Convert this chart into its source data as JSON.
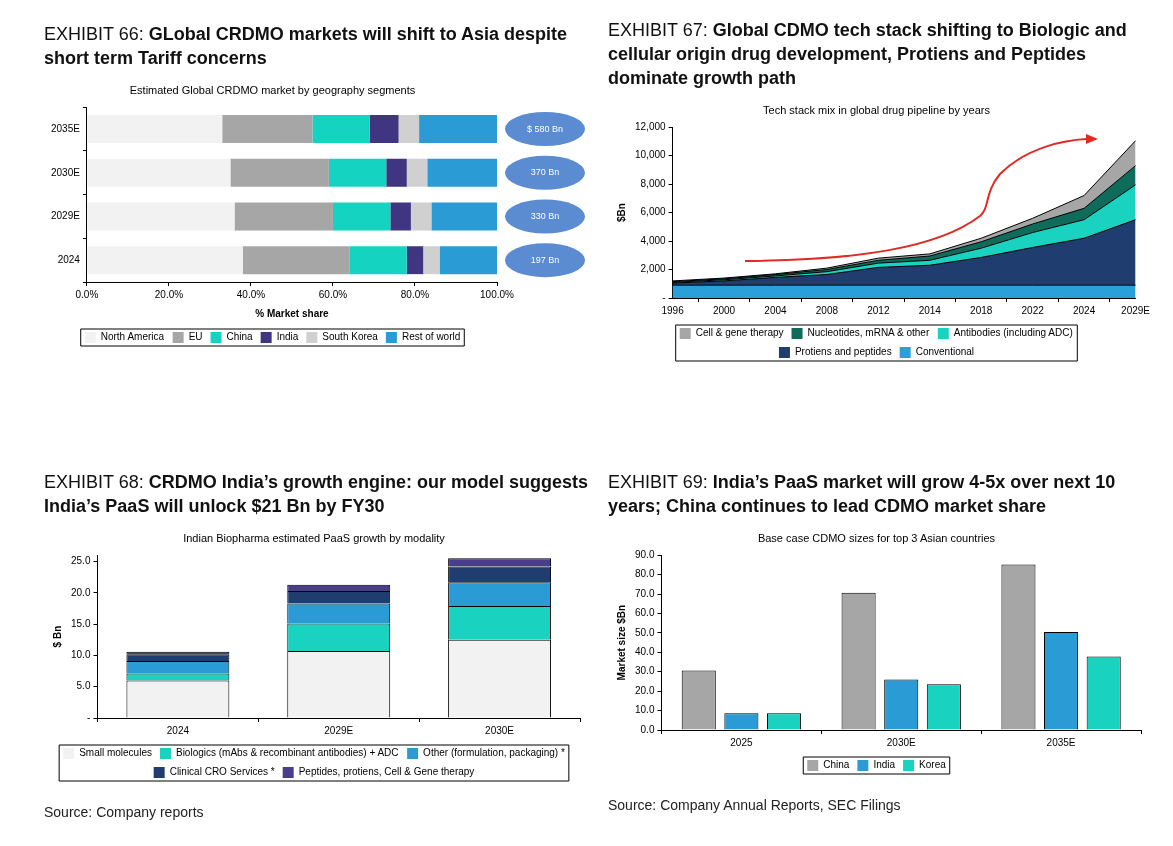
{
  "chart_data": [
    {
      "type": "bar",
      "orientation": "horizontal",
      "stacked": true,
      "title": "EXHIBIT 66: GLobal CRDMO markets will shift to Asia despite short term Tariff concerns",
      "subtitle": "Estimated Global CRDMO market by geography segments",
      "xlabel": "% Market share",
      "categories": [
        "2035E",
        "2030E",
        "2029E",
        "2024"
      ],
      "xlim": [
        0,
        100
      ],
      "xticks": [
        {
          "value": 0,
          "label": "0.0%"
        },
        {
          "value": 20,
          "label": "20.0%"
        },
        {
          "value": 40,
          "label": "40.0%"
        },
        {
          "value": 60,
          "label": "60.0%"
        },
        {
          "value": 80,
          "label": "80.0%"
        },
        {
          "value": 100,
          "label": "100.0%"
        }
      ],
      "legend": "bottom",
      "series": [
        {
          "name": "North America",
          "color": "#f2f2f2",
          "values": [
            33,
            35,
            36,
            38
          ]
        },
        {
          "name": "EU",
          "color": "#a6a6a6",
          "values": [
            22,
            24,
            24,
            26
          ]
        },
        {
          "name": "China",
          "color": "#14d3c0",
          "values": [
            14,
            14,
            14,
            14
          ]
        },
        {
          "name": "India",
          "color": "#3f3580",
          "values": [
            7,
            5,
            5,
            4
          ]
        },
        {
          "name": "South Korea",
          "color": "#d0d0d0",
          "values": [
            5,
            5,
            5,
            4
          ]
        },
        {
          "name": "Rest of world",
          "color": "#2a9bd4",
          "values": [
            19,
            17,
            16,
            14
          ]
        }
      ],
      "annotations": [
        "$ 580 Bn",
        "370 Bn",
        "330 Bn",
        "197 Bn"
      ]
    },
    {
      "type": "area",
      "stacked": true,
      "title": "EXHIBIT 67: Global CDMO tech stack shifting to Biologic and cellular origin drug development, Protiens and Peptides dominate growth path",
      "subtitle": "Tech stack mix in global drug pipeline by years",
      "ylabel": "$Bn",
      "categories": [
        "1996",
        "2000",
        "2004",
        "2008",
        "2012",
        "2014",
        "2018",
        "2022",
        "2024",
        "2029E"
      ],
      "ylim": [
        0,
        12000
      ],
      "yticks": [
        {
          "value": 0,
          "label": "-"
        },
        {
          "value": 2000,
          "label": "2,000"
        },
        {
          "value": 4000,
          "label": "4,000"
        },
        {
          "value": 6000,
          "label": "6,000"
        },
        {
          "value": 8000,
          "label": "8,000"
        },
        {
          "value": 10000,
          "label": "10,000"
        },
        {
          "value": 12000,
          "label": "12,000"
        }
      ],
      "legend": "bottom",
      "series": [
        {
          "name": "Conventional",
          "color": "#2b9fd8",
          "values": [
            900,
            900,
            900,
            900,
            900,
            900,
            900,
            900,
            900,
            900
          ]
        },
        {
          "name": "Protiens and peptides",
          "color": "#1f3d6e",
          "values": [
            150,
            300,
            550,
            750,
            1250,
            1400,
            1950,
            2650,
            3300,
            4600
          ]
        },
        {
          "name": "Antibodies (including ADC)",
          "color": "#19d3c0",
          "values": [
            50,
            80,
            100,
            200,
            300,
            350,
            650,
            1050,
            1300,
            2450
          ]
        },
        {
          "name": "Nucleotides, mRNA & other",
          "color": "#0f6b5a",
          "values": [
            50,
            70,
            100,
            150,
            200,
            300,
            450,
            600,
            800,
            1350
          ]
        },
        {
          "name": "Cell & gene therapy",
          "color": "#a6a6a6",
          "values": [
            50,
            50,
            50,
            100,
            150,
            150,
            250,
            400,
            900,
            1750
          ]
        }
      ]
    },
    {
      "type": "bar",
      "stacked": true,
      "title": "EXHIBIT 68: CRDMO India’s growth engine: our model suggests India’s PaaS will unlock $21 Bn by FY30",
      "subtitle": "Indian Biopharma estimated PaaS growth by modality",
      "ylabel": "$ Bn",
      "categories": [
        "2024",
        "2029E",
        "2030E"
      ],
      "ylim": [
        0,
        26
      ],
      "yticks": [
        {
          "value": 0,
          "label": "-"
        },
        {
          "value": 5,
          "label": "5.0"
        },
        {
          "value": 10,
          "label": "10.0"
        },
        {
          "value": 15,
          "label": "15.0"
        },
        {
          "value": 20,
          "label": "20.0"
        },
        {
          "value": 25,
          "label": "25.0"
        }
      ],
      "legend": "bottom",
      "series": [
        {
          "name": "Small molecules",
          "color": "#f2f2f2",
          "values": [
            6.0,
            10.7,
            12.5
          ]
        },
        {
          "name": "Biologics (mAbs & recombinant antibodies) + ADC",
          "color": "#19d3c0",
          "values": [
            1.1,
            4.4,
            5.4
          ]
        },
        {
          "name": "Other (formulation, packaging) *",
          "color": "#2a9bd4",
          "values": [
            2.0,
            3.2,
            3.8
          ]
        },
        {
          "name": "Clinical CRO Services *",
          "color": "#1f3d6e",
          "values": [
            1.1,
            2.0,
            2.5
          ]
        },
        {
          "name": "Peptides, protiens, Cell & Gene therapy",
          "color": "#4a3d8a",
          "values": [
            0.4,
            1.0,
            1.3
          ]
        }
      ],
      "annotations": [
        "Source: Company reports"
      ]
    },
    {
      "type": "bar",
      "title": "EXHIBIT 69: India’s PaaS market will grow 4-5x over next 10 years; China continues to lead CDMO market share",
      "subtitle": "Base case CDMO sizes for top 3 Asian countries",
      "ylabel": "Market size $Bn",
      "categories": [
        "2025",
        "2030E",
        "2035E"
      ],
      "ylim": [
        0,
        90
      ],
      "yticks": [
        {
          "value": 0,
          "label": "0.0"
        },
        {
          "value": 10,
          "label": "10.0"
        },
        {
          "value": 20,
          "label": "20.0"
        },
        {
          "value": 30,
          "label": "30.0"
        },
        {
          "value": 40,
          "label": "40.0"
        },
        {
          "value": 50,
          "label": "50.0"
        },
        {
          "value": 60,
          "label": "60.0"
        },
        {
          "value": 70,
          "label": "70.0"
        },
        {
          "value": 80,
          "label": "80.0"
        },
        {
          "value": 90,
          "label": "90.0"
        }
      ],
      "legend": "bottom",
      "series": [
        {
          "name": "China",
          "color": "#a6a6a6",
          "values": [
            30.6,
            70.7,
            85.2
          ]
        },
        {
          "name": "India",
          "color": "#2a9bd4",
          "values": [
            8.6,
            26.0,
            50.4
          ]
        },
        {
          "name": "Korea",
          "color": "#19d3c0",
          "values": [
            8.6,
            23.6,
            37.9
          ]
        }
      ],
      "annotations": [
        "Source: Company Annual Reports, SEC Filings"
      ]
    }
  ]
}
